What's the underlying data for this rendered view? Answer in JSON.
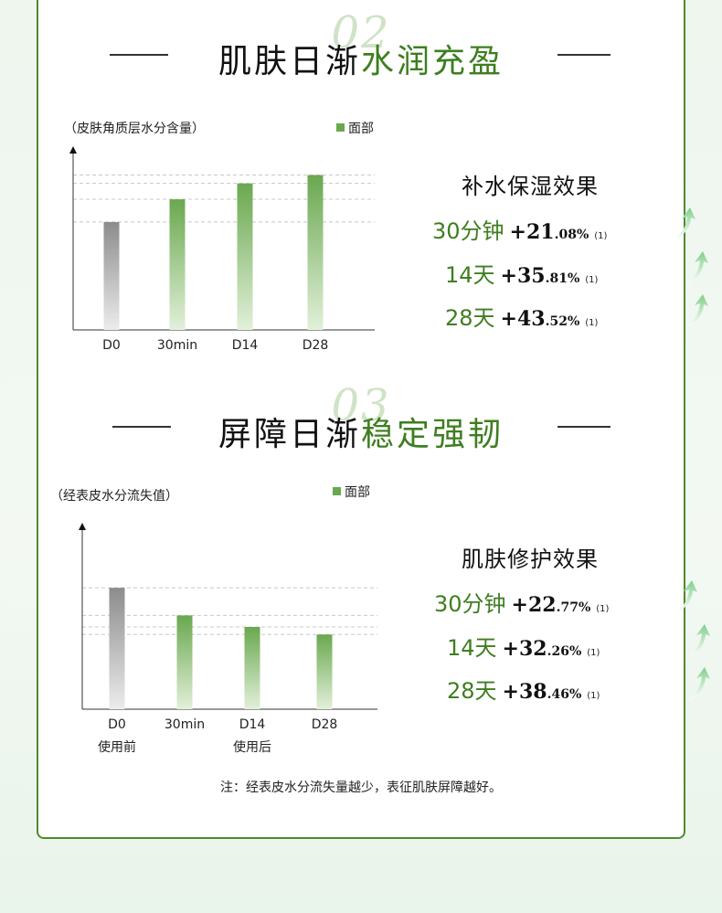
{
  "colors": {
    "accent_green": "#3e7e1f",
    "bar_green": "#6aa84f",
    "bar_gray": "#8c8c8c"
  },
  "section1": {
    "number": "02",
    "title_dark": "肌肤日渐",
    "title_green": "水润充盈",
    "effect_title": "补水保湿效果",
    "effects": [
      {
        "period": "30分钟",
        "int": "+21",
        "dec": ".08%",
        "ref": "(1)",
        "icon": "arrow-up-icon"
      },
      {
        "period": "14天",
        "int": "+35",
        "dec": ".81%",
        "ref": "(1)",
        "icon": "arrow-up-icon"
      },
      {
        "period": "28天",
        "int": "+43",
        "dec": ".52%",
        "ref": "(1)",
        "icon": "arrow-up-icon"
      }
    ]
  },
  "section2": {
    "number": "03",
    "title_dark": "屏障日渐",
    "title_green": "稳定强韧",
    "effect_title": "肌肤修护效果",
    "effects": [
      {
        "period": "30分钟",
        "int": "+22",
        "dec": ".77%",
        "ref": "(1)",
        "icon": "arrow-up-icon"
      },
      {
        "period": "14天",
        "int": "+32",
        "dec": ".26%",
        "ref": "(1)",
        "icon": "arrow-up-icon"
      },
      {
        "period": "28天",
        "int": "+38",
        "dec": ".46%",
        "ref": "(1)",
        "icon": "arrow-up-icon"
      }
    ]
  },
  "chart_data": [
    {
      "type": "bar",
      "ylabel": "（皮肤角质层水分含量）",
      "legend": "面部",
      "categories": [
        "D0",
        "30min",
        "D14",
        "D28"
      ],
      "values": [
        100,
        121.08,
        135.81,
        143.52
      ],
      "ylim": [
        0,
        155
      ],
      "grid": "dashed"
    },
    {
      "type": "bar",
      "ylabel": "（经表皮水分流失值）",
      "legend": "面部",
      "categories": [
        "D0",
        "30min",
        "D14",
        "D28"
      ],
      "group_labels": [
        {
          "text": "使用前",
          "under": 0
        },
        {
          "text": "使用后",
          "under": 2
        }
      ],
      "values": [
        100,
        77.23,
        67.74,
        61.54
      ],
      "ylim": [
        0,
        140
      ],
      "grid": "dashed"
    }
  ],
  "note": "注：经表皮水分流失量越少，表征肌肤屏障越好。"
}
